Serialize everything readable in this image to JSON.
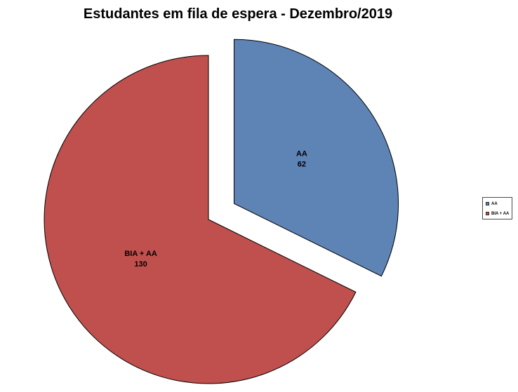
{
  "page": {
    "background": "#ffffff"
  },
  "chart_data": {
    "type": "pie",
    "title": "Estudantes em fila de espera - Dezembro/2019",
    "categories": [
      "AA",
      "BIA + AA"
    ],
    "values": [
      62,
      130
    ],
    "colors": [
      "#5E83B5",
      "#C0504D"
    ],
    "slice_border_color": "#000000",
    "exploded": [
      true,
      false
    ],
    "start_angle_deg": 0,
    "direction": "clockwise",
    "data_labels": "category-and-value",
    "legend_position": "middle-right",
    "grid": false
  },
  "legend": {
    "items": [
      {
        "label": "AA",
        "color": "#5E83B5"
      },
      {
        "label": "BIA + AA",
        "color": "#C0504D"
      }
    ]
  }
}
